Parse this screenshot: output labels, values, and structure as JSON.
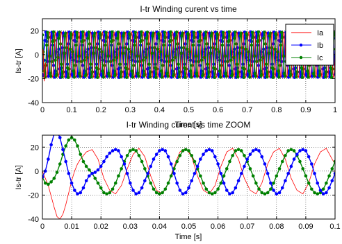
{
  "chart_data": [
    {
      "type": "line",
      "title": "I-tr Winding curent vs time",
      "xlabel": "Time [s]",
      "ylabel": "Is-tr [A]",
      "xlim": [
        0,
        1
      ],
      "ylim": [
        -40,
        30
      ],
      "xticks": [
        0,
        0.1,
        0.2,
        0.3,
        0.4,
        0.5,
        0.6,
        0.7,
        0.8,
        0.9,
        1
      ],
      "yticks": [
        -40,
        -20,
        0,
        20
      ],
      "xtick_labels": [
        "0",
        "0.1",
        "0.2",
        "0.3",
        "0.4",
        "0.5",
        "0.6",
        "0.7",
        "0.8",
        "0.9",
        "1"
      ],
      "ytick_labels": [
        "-40",
        "-20",
        "0",
        "20"
      ],
      "grid": true,
      "legend": "top-right",
      "series": [
        {
          "name": "Ia",
          "color": "#ff0000",
          "marker": "none",
          "amplitude": 19,
          "frequency_hz": 50,
          "phase_deg": 0
        },
        {
          "name": "Ib",
          "color": "#0000ff",
          "marker": "dot",
          "amplitude": 19,
          "frequency_hz": 50,
          "phase_deg": -120
        },
        {
          "name": "Ic",
          "color": "#008000",
          "marker": "dot",
          "amplitude": 19,
          "frequency_hz": 50,
          "phase_deg": 120
        }
      ]
    },
    {
      "type": "line",
      "title": "I-tr Winding curent vs time ZOOM",
      "xlabel": "Time [s]",
      "ylabel": "Is-tr [A]",
      "xlim": [
        0,
        0.1
      ],
      "ylim": [
        -40,
        30
      ],
      "xticks": [
        0,
        0.01,
        0.02,
        0.03,
        0.04,
        0.05,
        0.06,
        0.07,
        0.08,
        0.09,
        0.1
      ],
      "yticks": [
        -40,
        -20,
        0,
        20
      ],
      "xtick_labels": [
        "0",
        "0.01",
        "0.02",
        "0.03",
        "0.04",
        "0.05",
        "0.06",
        "0.07",
        "0.08",
        "0.09",
        "0.1"
      ],
      "ytick_labels": [
        "-40",
        "-20",
        "0",
        "20"
      ],
      "grid": true,
      "series": [
        {
          "name": "Ia",
          "color": "#ff0000",
          "marker": "none",
          "x": [
            0,
            0.002,
            0.004,
            0.005,
            0.006,
            0.007,
            0.008,
            0.009,
            0.01,
            0.011,
            0.012,
            0.013,
            0.015,
            0.017,
            0.019,
            0.021,
            0.023,
            0.025,
            0.027,
            0.029,
            0.031,
            0.033,
            0.035,
            0.037,
            0.039,
            0.041,
            0.043,
            0.045,
            0.047,
            0.049,
            0.051,
            0.053,
            0.055,
            0.057,
            0.059,
            0.061,
            0.063,
            0.065,
            0.067,
            0.069,
            0.071,
            0.073,
            0.075,
            0.077,
            0.079,
            0.081,
            0.083,
            0.085,
            0.087,
            0.089,
            0.091,
            0.093,
            0.095,
            0.097,
            0.099,
            0.1
          ],
          "y": [
            0,
            -12,
            -30,
            -38,
            -40,
            -36,
            -28,
            -18,
            -8,
            0,
            6,
            10,
            16,
            18,
            10,
            -6,
            -16,
            -19,
            -12,
            2,
            14,
            19,
            12,
            -4,
            -16,
            -19,
            -10,
            4,
            16,
            19,
            12,
            -4,
            -16,
            -19,
            -12,
            4,
            16,
            19,
            10,
            -6,
            -16,
            -19,
            -10,
            6,
            16,
            19,
            10,
            -6,
            -16,
            -19,
            -10,
            6,
            16,
            19,
            10,
            6
          ]
        },
        {
          "name": "Ib",
          "color": "#0000ff",
          "marker": "dot",
          "x": [
            0,
            0.001,
            0.002,
            0.003,
            0.004,
            0.005,
            0.006,
            0.007,
            0.008,
            0.009,
            0.01,
            0.011,
            0.012,
            0.013,
            0.014,
            0.015,
            0.016,
            0.017,
            0.018,
            0.019,
            0.02,
            0.021,
            0.022,
            0.023,
            0.024,
            0.025,
            0.026,
            0.027,
            0.028,
            0.029,
            0.03,
            0.031,
            0.032,
            0.033,
            0.034,
            0.035,
            0.036,
            0.037,
            0.038,
            0.039,
            0.04,
            0.041,
            0.042,
            0.043,
            0.044,
            0.045,
            0.046,
            0.047,
            0.048,
            0.049,
            0.05,
            0.051,
            0.052,
            0.053,
            0.054,
            0.055,
            0.056,
            0.057,
            0.058,
            0.059,
            0.06,
            0.061,
            0.062,
            0.063,
            0.064,
            0.065,
            0.066,
            0.067,
            0.068,
            0.069,
            0.07,
            0.071,
            0.072,
            0.073,
            0.074,
            0.075,
            0.076,
            0.077,
            0.078,
            0.079,
            0.08,
            0.081,
            0.082,
            0.083,
            0.084,
            0.085,
            0.086,
            0.087,
            0.088,
            0.089,
            0.09,
            0.091,
            0.092,
            0.093,
            0.094,
            0.095,
            0.096,
            0.097,
            0.098,
            0.099,
            0.1
          ],
          "y": [
            -5,
            0,
            10,
            22,
            31,
            33,
            28,
            18,
            8,
            -2,
            -10,
            -16,
            -19,
            -18,
            -14,
            -8,
            -4,
            -2,
            -1,
            1,
            4,
            8,
            12,
            15,
            17,
            18,
            17,
            12,
            6,
            -2,
            -10,
            -16,
            -19,
            -18,
            -14,
            -8,
            -2,
            4,
            10,
            14,
            17,
            18,
            17,
            12,
            6,
            -2,
            -10,
            -16,
            -19,
            -18,
            -14,
            -8,
            -2,
            4,
            10,
            14,
            17,
            18,
            17,
            12,
            6,
            -2,
            -10,
            -16,
            -19,
            -18,
            -14,
            -8,
            -2,
            4,
            10,
            14,
            17,
            18,
            17,
            12,
            6,
            -2,
            -10,
            -16,
            -19,
            -18,
            -14,
            -8,
            -2,
            4,
            10,
            14,
            17,
            18,
            17,
            12,
            6,
            -2,
            -10,
            -16,
            -19,
            -18,
            -14,
            -8,
            -2
          ]
        },
        {
          "name": "Ic",
          "color": "#008000",
          "marker": "dot",
          "x": [
            0,
            0.001,
            0.002,
            0.003,
            0.004,
            0.005,
            0.006,
            0.007,
            0.008,
            0.009,
            0.01,
            0.011,
            0.012,
            0.013,
            0.014,
            0.015,
            0.016,
            0.017,
            0.018,
            0.019,
            0.02,
            0.021,
            0.022,
            0.023,
            0.024,
            0.025,
            0.026,
            0.027,
            0.028,
            0.029,
            0.03,
            0.031,
            0.032,
            0.033,
            0.034,
            0.035,
            0.036,
            0.037,
            0.038,
            0.039,
            0.04,
            0.041,
            0.042,
            0.043,
            0.044,
            0.045,
            0.046,
            0.047,
            0.048,
            0.049,
            0.05,
            0.051,
            0.052,
            0.053,
            0.054,
            0.055,
            0.056,
            0.057,
            0.058,
            0.059,
            0.06,
            0.061,
            0.062,
            0.063,
            0.064,
            0.065,
            0.066,
            0.067,
            0.068,
            0.069,
            0.07,
            0.071,
            0.072,
            0.073,
            0.074,
            0.075,
            0.076,
            0.077,
            0.078,
            0.079,
            0.08,
            0.081,
            0.082,
            0.083,
            0.084,
            0.085,
            0.086,
            0.087,
            0.088,
            0.089,
            0.09,
            0.091,
            0.092,
            0.093,
            0.094,
            0.095,
            0.096,
            0.097,
            0.098,
            0.099,
            0.1
          ],
          "y": [
            -5,
            -10,
            -11,
            -9,
            -6,
            -1,
            6,
            14,
            21,
            26,
            28,
            26,
            21,
            14,
            8,
            4,
            1,
            -2,
            -6,
            -10,
            -14,
            -18,
            -19,
            -18,
            -15,
            -10,
            -4,
            2,
            8,
            13,
            17,
            18,
            17,
            13,
            8,
            2,
            -4,
            -10,
            -15,
            -18,
            -19,
            -18,
            -15,
            -10,
            -4,
            2,
            8,
            13,
            17,
            18,
            17,
            13,
            8,
            2,
            -4,
            -10,
            -15,
            -18,
            -19,
            -18,
            -15,
            -10,
            -4,
            2,
            8,
            13,
            17,
            18,
            17,
            13,
            8,
            2,
            -4,
            -10,
            -15,
            -18,
            -19,
            -18,
            -15,
            -10,
            -4,
            2,
            8,
            13,
            17,
            18,
            17,
            13,
            8,
            2,
            -4,
            -10,
            -15,
            -18,
            -19,
            -18,
            -15,
            -10,
            -4,
            2,
            8
          ]
        }
      ]
    }
  ]
}
